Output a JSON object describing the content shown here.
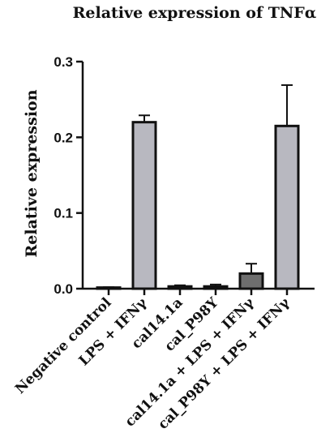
{
  "chart_data": {
    "type": "bar",
    "title": "Relative expression of TNFα",
    "xlabel": "",
    "ylabel": "Relative expression",
    "ylim": [
      0,
      0.3
    ],
    "yticks": [
      "0.0",
      "0.1",
      "0.2",
      "0.3"
    ],
    "categories": [
      "Negative control",
      "LPS + IFNγ",
      "cal14.1a",
      "cal_P98Y",
      "cal14.1a + LPS + IFNγ",
      "cal_P98Y + LPS + IFNγ"
    ],
    "values": [
      0.0015,
      0.22,
      0.003,
      0.003,
      0.02,
      0.215
    ],
    "errors": [
      0.0005,
      0.009,
      0.0015,
      0.0025,
      0.013,
      0.054
    ],
    "colors": [
      "#f0f0f0",
      "#b8b8c0",
      "#f0f0f0",
      "#f0f0f0",
      "#6e6e6e",
      "#b8b8c0"
    ],
    "grid": false,
    "legend": "none"
  }
}
